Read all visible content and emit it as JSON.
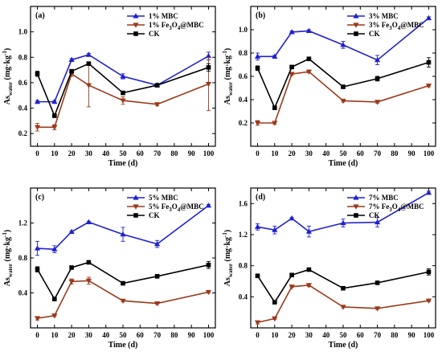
{
  "chart_data": [
    {
      "type": "line",
      "panel_label": "(a)",
      "xlabel": "Time (d)",
      "ylabel": "As",
      "ylabel_sub": "water",
      "ylabel_unit": " (mg·kg",
      "ylabel_exp": "-1",
      "ylabel_close": ")",
      "x": [
        0,
        10,
        20,
        30,
        50,
        70,
        100
      ],
      "xlim": [
        -4,
        104
      ],
      "xticks": [
        0,
        10,
        20,
        30,
        40,
        50,
        60,
        70,
        80,
        90,
        100
      ],
      "ylim": [
        0.1,
        1.2
      ],
      "yticks": [
        0.2,
        0.4,
        0.6,
        0.8,
        1.0
      ],
      "ytick_labels": [
        "0.2",
        "0.4",
        "0.6",
        "0.8",
        "1.0"
      ],
      "legend_position": "top-right",
      "series": [
        {
          "name": "1% MBC",
          "name_parts": [
            "1% MBC"
          ],
          "marker": "triangle",
          "color": "#2020d0",
          "values": [
            0.45,
            0.45,
            0.78,
            0.82,
            0.65,
            0.58,
            0.81
          ],
          "errors": [
            0.01,
            0.01,
            0.01,
            0.01,
            0.02,
            0.01,
            0.03
          ]
        },
        {
          "name": "1% Fe3O4@MBC",
          "name_parts": [
            "1% Fe",
            "3",
            "O",
            "4",
            "@MBC"
          ],
          "marker": "triangle-down",
          "color": "#9b3a1a",
          "values": [
            0.25,
            0.25,
            0.67,
            0.58,
            0.46,
            0.43,
            0.59
          ],
          "errors": [
            0.03,
            0.02,
            0.02,
            0.17,
            0.03,
            0.01,
            0.21
          ]
        },
        {
          "name": "CK",
          "name_parts": [
            "CK"
          ],
          "marker": "square",
          "color": "#000000",
          "values": [
            0.67,
            0.34,
            0.69,
            0.75,
            0.52,
            0.58,
            0.72
          ],
          "errors": [
            0.02,
            0.01,
            0.01,
            0.01,
            0.01,
            0.01,
            0.03
          ]
        }
      ]
    },
    {
      "type": "line",
      "panel_label": "(b)",
      "xlabel": "Time (d)",
      "ylabel": "As",
      "ylabel_sub": "water",
      "ylabel_unit": " (mg·kg",
      "ylabel_exp": "-1",
      "ylabel_close": ")",
      "x": [
        0,
        10,
        20,
        30,
        50,
        70,
        100
      ],
      "xlim": [
        -4,
        104
      ],
      "xticks": [
        0,
        10,
        20,
        30,
        40,
        50,
        60,
        70,
        80,
        90,
        100
      ],
      "ylim": [
        0.0,
        1.2
      ],
      "yticks": [
        0.2,
        0.4,
        0.6,
        0.8,
        1.0
      ],
      "ytick_labels": [
        "0.2",
        "0.4",
        "0.6",
        "0.8",
        "1.0"
      ],
      "legend_position": "top-right",
      "series": [
        {
          "name": "3% MBC",
          "name_parts": [
            "3% MBC"
          ],
          "marker": "triangle",
          "color": "#2020d0",
          "values": [
            0.77,
            0.77,
            0.98,
            0.99,
            0.87,
            0.74,
            1.1
          ],
          "errors": [
            0.03,
            0.01,
            0.01,
            0.01,
            0.03,
            0.04,
            0.01
          ]
        },
        {
          "name": "3% Fe3O4@MBC",
          "name_parts": [
            "3% Fe",
            "3",
            "O",
            "4",
            "@MBC"
          ],
          "marker": "triangle-down",
          "color": "#9b3a1a",
          "values": [
            0.2,
            0.2,
            0.62,
            0.64,
            0.39,
            0.38,
            0.52
          ],
          "errors": [
            0.02,
            0.01,
            0.01,
            0.01,
            0.01,
            0.01,
            0.01
          ]
        },
        {
          "name": "CK",
          "name_parts": [
            "CK"
          ],
          "marker": "square",
          "color": "#000000",
          "values": [
            0.67,
            0.33,
            0.68,
            0.75,
            0.51,
            0.58,
            0.72
          ],
          "errors": [
            0.02,
            0.01,
            0.01,
            0.01,
            0.01,
            0.02,
            0.04
          ]
        }
      ]
    },
    {
      "type": "line",
      "panel_label": "(c)",
      "xlabel": "Time (d)",
      "ylabel": "As",
      "ylabel_sub": "water",
      "ylabel_unit": " (mg·kg",
      "ylabel_exp": "-1",
      "ylabel_close": ")",
      "x": [
        0,
        10,
        20,
        30,
        50,
        70,
        100
      ],
      "xlim": [
        -4,
        104
      ],
      "xticks": [
        0,
        10,
        20,
        30,
        40,
        50,
        60,
        70,
        80,
        90,
        100
      ],
      "ylim": [
        0.0,
        1.6
      ],
      "yticks": [
        0.4,
        0.8,
        1.2
      ],
      "ytick_labels": [
        "0.4",
        "0.8",
        "1.2"
      ],
      "legend_position": "top-right",
      "series": [
        {
          "name": "5% MBC",
          "name_parts": [
            "5% MBC"
          ],
          "marker": "triangle",
          "color": "#2020d0",
          "values": [
            0.91,
            0.9,
            1.1,
            1.21,
            1.07,
            0.96,
            1.4
          ],
          "errors": [
            0.08,
            0.04,
            0.01,
            0.01,
            0.08,
            0.04,
            0.01
          ]
        },
        {
          "name": "5% Fe3O4@MBC",
          "name_parts": [
            "5% Fe",
            "3",
            "O",
            "4",
            "@MBC"
          ],
          "marker": "triangle-down",
          "color": "#9b3a1a",
          "values": [
            0.11,
            0.14,
            0.53,
            0.54,
            0.31,
            0.28,
            0.41
          ],
          "errors": [
            0.02,
            0.01,
            0.03,
            0.04,
            0.01,
            0.01,
            0.01
          ]
        },
        {
          "name": "CK",
          "name_parts": [
            "CK"
          ],
          "marker": "square",
          "color": "#000000",
          "values": [
            0.67,
            0.33,
            0.69,
            0.75,
            0.51,
            0.59,
            0.72
          ],
          "errors": [
            0.03,
            0.01,
            0.01,
            0.01,
            0.01,
            0.01,
            0.04
          ]
        }
      ]
    },
    {
      "type": "line",
      "panel_label": "(d)",
      "xlabel": "Time (d)",
      "ylabel": "As",
      "ylabel_sub": "water",
      "ylabel_unit": " (mg·kg",
      "ylabel_exp": "-1",
      "ylabel_close": ")",
      "x": [
        0,
        10,
        20,
        30,
        50,
        70,
        100
      ],
      "xlim": [
        -4,
        104
      ],
      "xticks": [
        0,
        10,
        20,
        30,
        40,
        50,
        60,
        70,
        80,
        90,
        100
      ],
      "ylim": [
        0.0,
        1.8
      ],
      "yticks": [
        0.4,
        0.8,
        1.2,
        1.6
      ],
      "ytick_labels": [
        "0.4",
        "0.8",
        "1.2",
        "1.6"
      ],
      "legend_position": "top-right",
      "series": [
        {
          "name": "7% MBC",
          "name_parts": [
            "7% MBC"
          ],
          "marker": "triangle",
          "color": "#2020d0",
          "values": [
            1.3,
            1.26,
            1.41,
            1.24,
            1.35,
            1.36,
            1.74
          ],
          "errors": [
            0.04,
            0.05,
            0.01,
            0.07,
            0.05,
            0.06,
            0.02
          ]
        },
        {
          "name": "7% Fe3O4@MBC",
          "name_parts": [
            "7% Fe",
            "3",
            "O",
            "4",
            "@MBC"
          ],
          "marker": "triangle-down",
          "color": "#9b3a1a",
          "values": [
            0.07,
            0.12,
            0.53,
            0.55,
            0.27,
            0.25,
            0.35
          ],
          "errors": [
            0.02,
            0.01,
            0.01,
            0.02,
            0.01,
            0.01,
            0.01
          ]
        },
        {
          "name": "CK",
          "name_parts": [
            "CK"
          ],
          "marker": "square",
          "color": "#000000",
          "values": [
            0.67,
            0.33,
            0.68,
            0.75,
            0.51,
            0.58,
            0.72
          ],
          "errors": [
            0.01,
            0.01,
            0.01,
            0.01,
            0.01,
            0.01,
            0.04
          ]
        }
      ]
    }
  ]
}
